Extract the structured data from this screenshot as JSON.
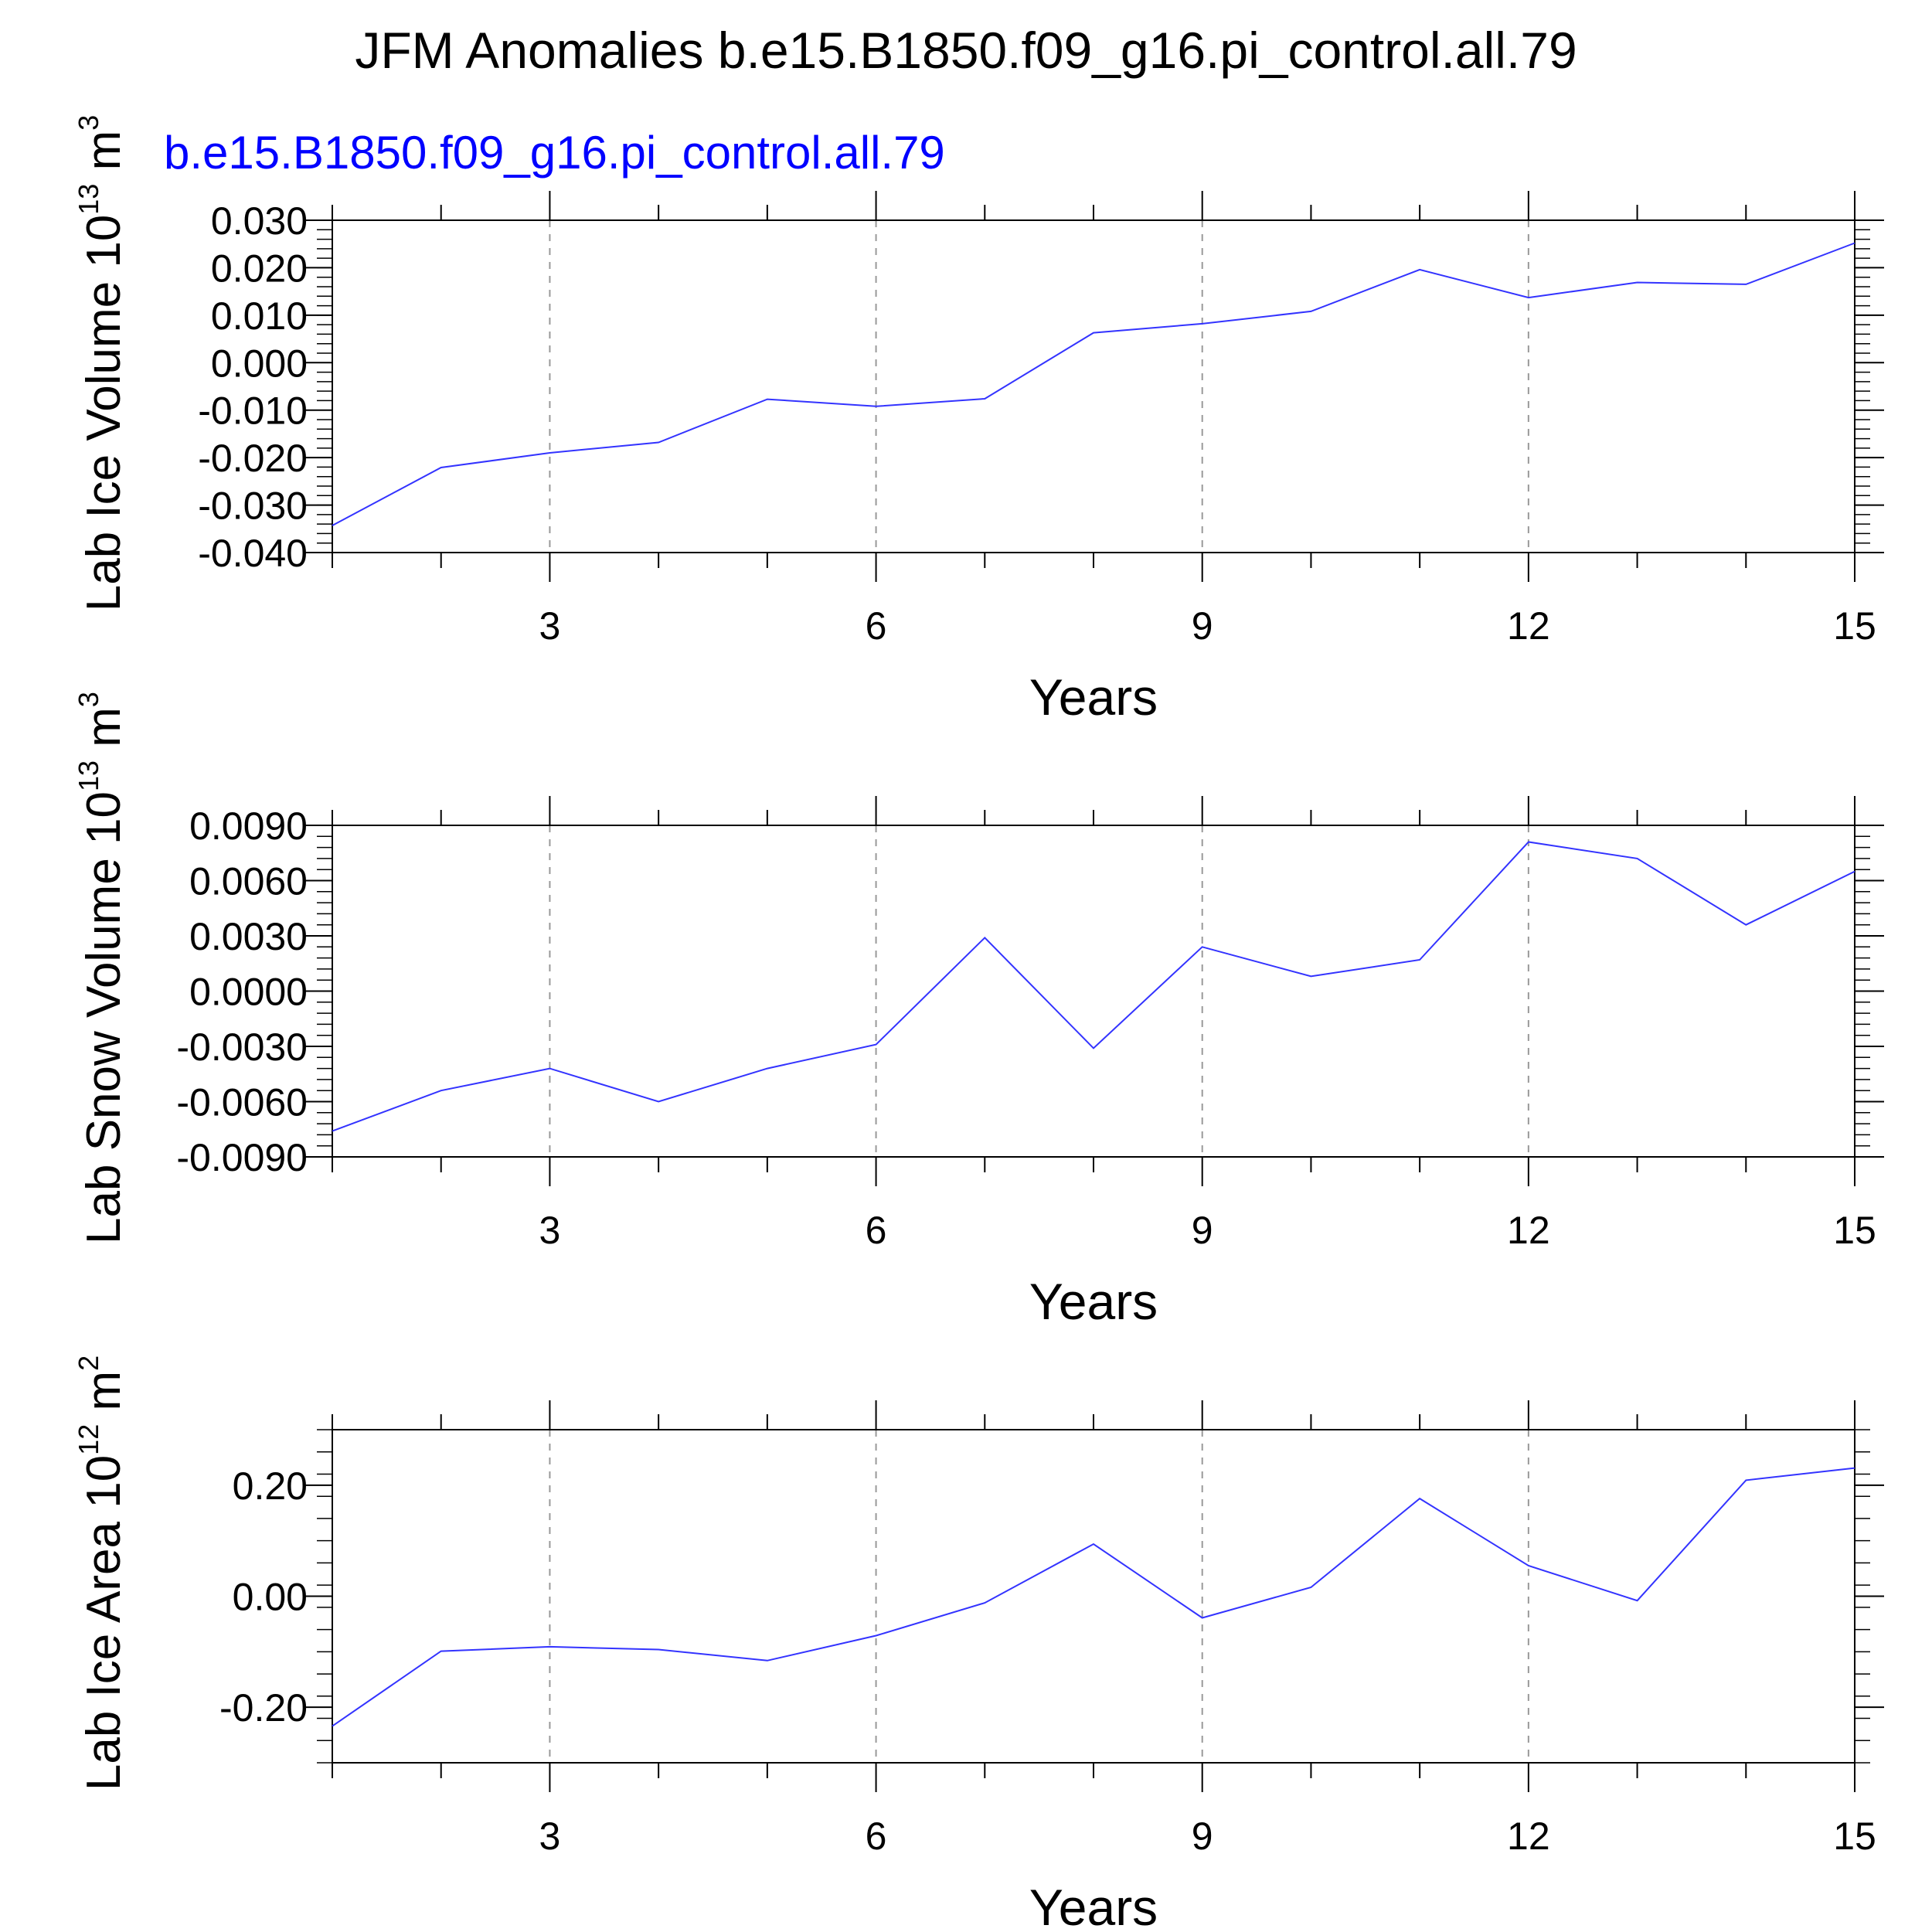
{
  "title": "JFM Anomalies b.e15.B1850.f09_g16.pi_control.all.79",
  "chart_data": [
    {
      "type": "line",
      "subtitle": "b.e15.B1850.f09_g16.pi_control.all.79",
      "series_color": "#3333ff",
      "ylabel_main": "Lab Ice Volume 10",
      "ylabel_exp": "13",
      "ylabel_unit": " m",
      "ylabel_unit_exp": "3",
      "xlabel": "Years",
      "xlim": [
        1,
        15
      ],
      "ylim": [
        -0.04,
        0.03
      ],
      "yticks": [
        -0.04,
        -0.03,
        -0.02,
        -0.01,
        0.0,
        0.01,
        0.02,
        0.03
      ],
      "ytick_labels": [
        "-0.040",
        "-0.030",
        "-0.020",
        "-0.010",
        "0.000",
        "0.010",
        "0.020",
        "0.030"
      ],
      "xticks": [
        3,
        6,
        9,
        12,
        15
      ],
      "xtick_labels": [
        "3",
        "6",
        "9",
        "12",
        "15"
      ],
      "x": [
        1,
        2,
        3,
        4,
        5,
        6,
        7,
        8,
        9,
        10,
        11,
        12,
        13,
        14,
        15
      ],
      "values": [
        -0.0343,
        -0.0221,
        -0.019,
        -0.0168,
        -0.0077,
        -0.0092,
        -0.0076,
        0.0063,
        0.0082,
        0.0108,
        0.0196,
        0.0137,
        0.0169,
        0.0165,
        0.0252
      ]
    },
    {
      "type": "line",
      "series_color": "#3333ff",
      "ylabel_main": "Lab Snow Volume 10",
      "ylabel_exp": "13",
      "ylabel_unit": " m",
      "ylabel_unit_exp": "3",
      "xlabel": "Years",
      "xlim": [
        1,
        15
      ],
      "ylim": [
        -0.009,
        0.009
      ],
      "yticks": [
        -0.009,
        -0.006,
        -0.003,
        0.0,
        0.003,
        0.006,
        0.009
      ],
      "ytick_labels": [
        "-0.0090",
        "-0.0060",
        "-0.0030",
        "0.0000",
        "0.0030",
        "0.0060",
        "0.0090"
      ],
      "xticks": [
        3,
        6,
        9,
        12,
        15
      ],
      "xtick_labels": [
        "3",
        "6",
        "9",
        "12",
        "15"
      ],
      "x": [
        1,
        2,
        3,
        4,
        5,
        6,
        7,
        8,
        9,
        10,
        11,
        12,
        13,
        14,
        15
      ],
      "values": [
        -0.0076,
        -0.0054,
        -0.0042,
        -0.006,
        -0.0042,
        -0.0029,
        0.0029,
        -0.0031,
        0.0024,
        0.0008,
        0.0017,
        0.0081,
        0.0072,
        0.0036,
        0.0065
      ]
    },
    {
      "type": "line",
      "series_color": "#3333ff",
      "ylabel_main": "Lab Ice Area 10",
      "ylabel_exp": "12",
      "ylabel_unit": " m",
      "ylabel_unit_exp": "2",
      "xlabel": "Years",
      "xlim": [
        1,
        15
      ],
      "ylim": [
        -0.3,
        0.3
      ],
      "yticks": [
        -0.2,
        0.0,
        0.2
      ],
      "ytick_labels": [
        "-0.20",
        "0.00",
        "0.20"
      ],
      "xticks": [
        3,
        6,
        9,
        12,
        15
      ],
      "xtick_labels": [
        "3",
        "6",
        "9",
        "12",
        "15"
      ],
      "x": [
        1,
        2,
        3,
        4,
        5,
        6,
        7,
        8,
        9,
        10,
        11,
        12,
        13,
        14,
        15
      ],
      "values": [
        -0.234,
        -0.099,
        -0.091,
        -0.096,
        -0.116,
        -0.071,
        -0.012,
        0.094,
        -0.039,
        0.016,
        0.176,
        0.055,
        -0.008,
        0.209,
        0.231
      ]
    }
  ]
}
